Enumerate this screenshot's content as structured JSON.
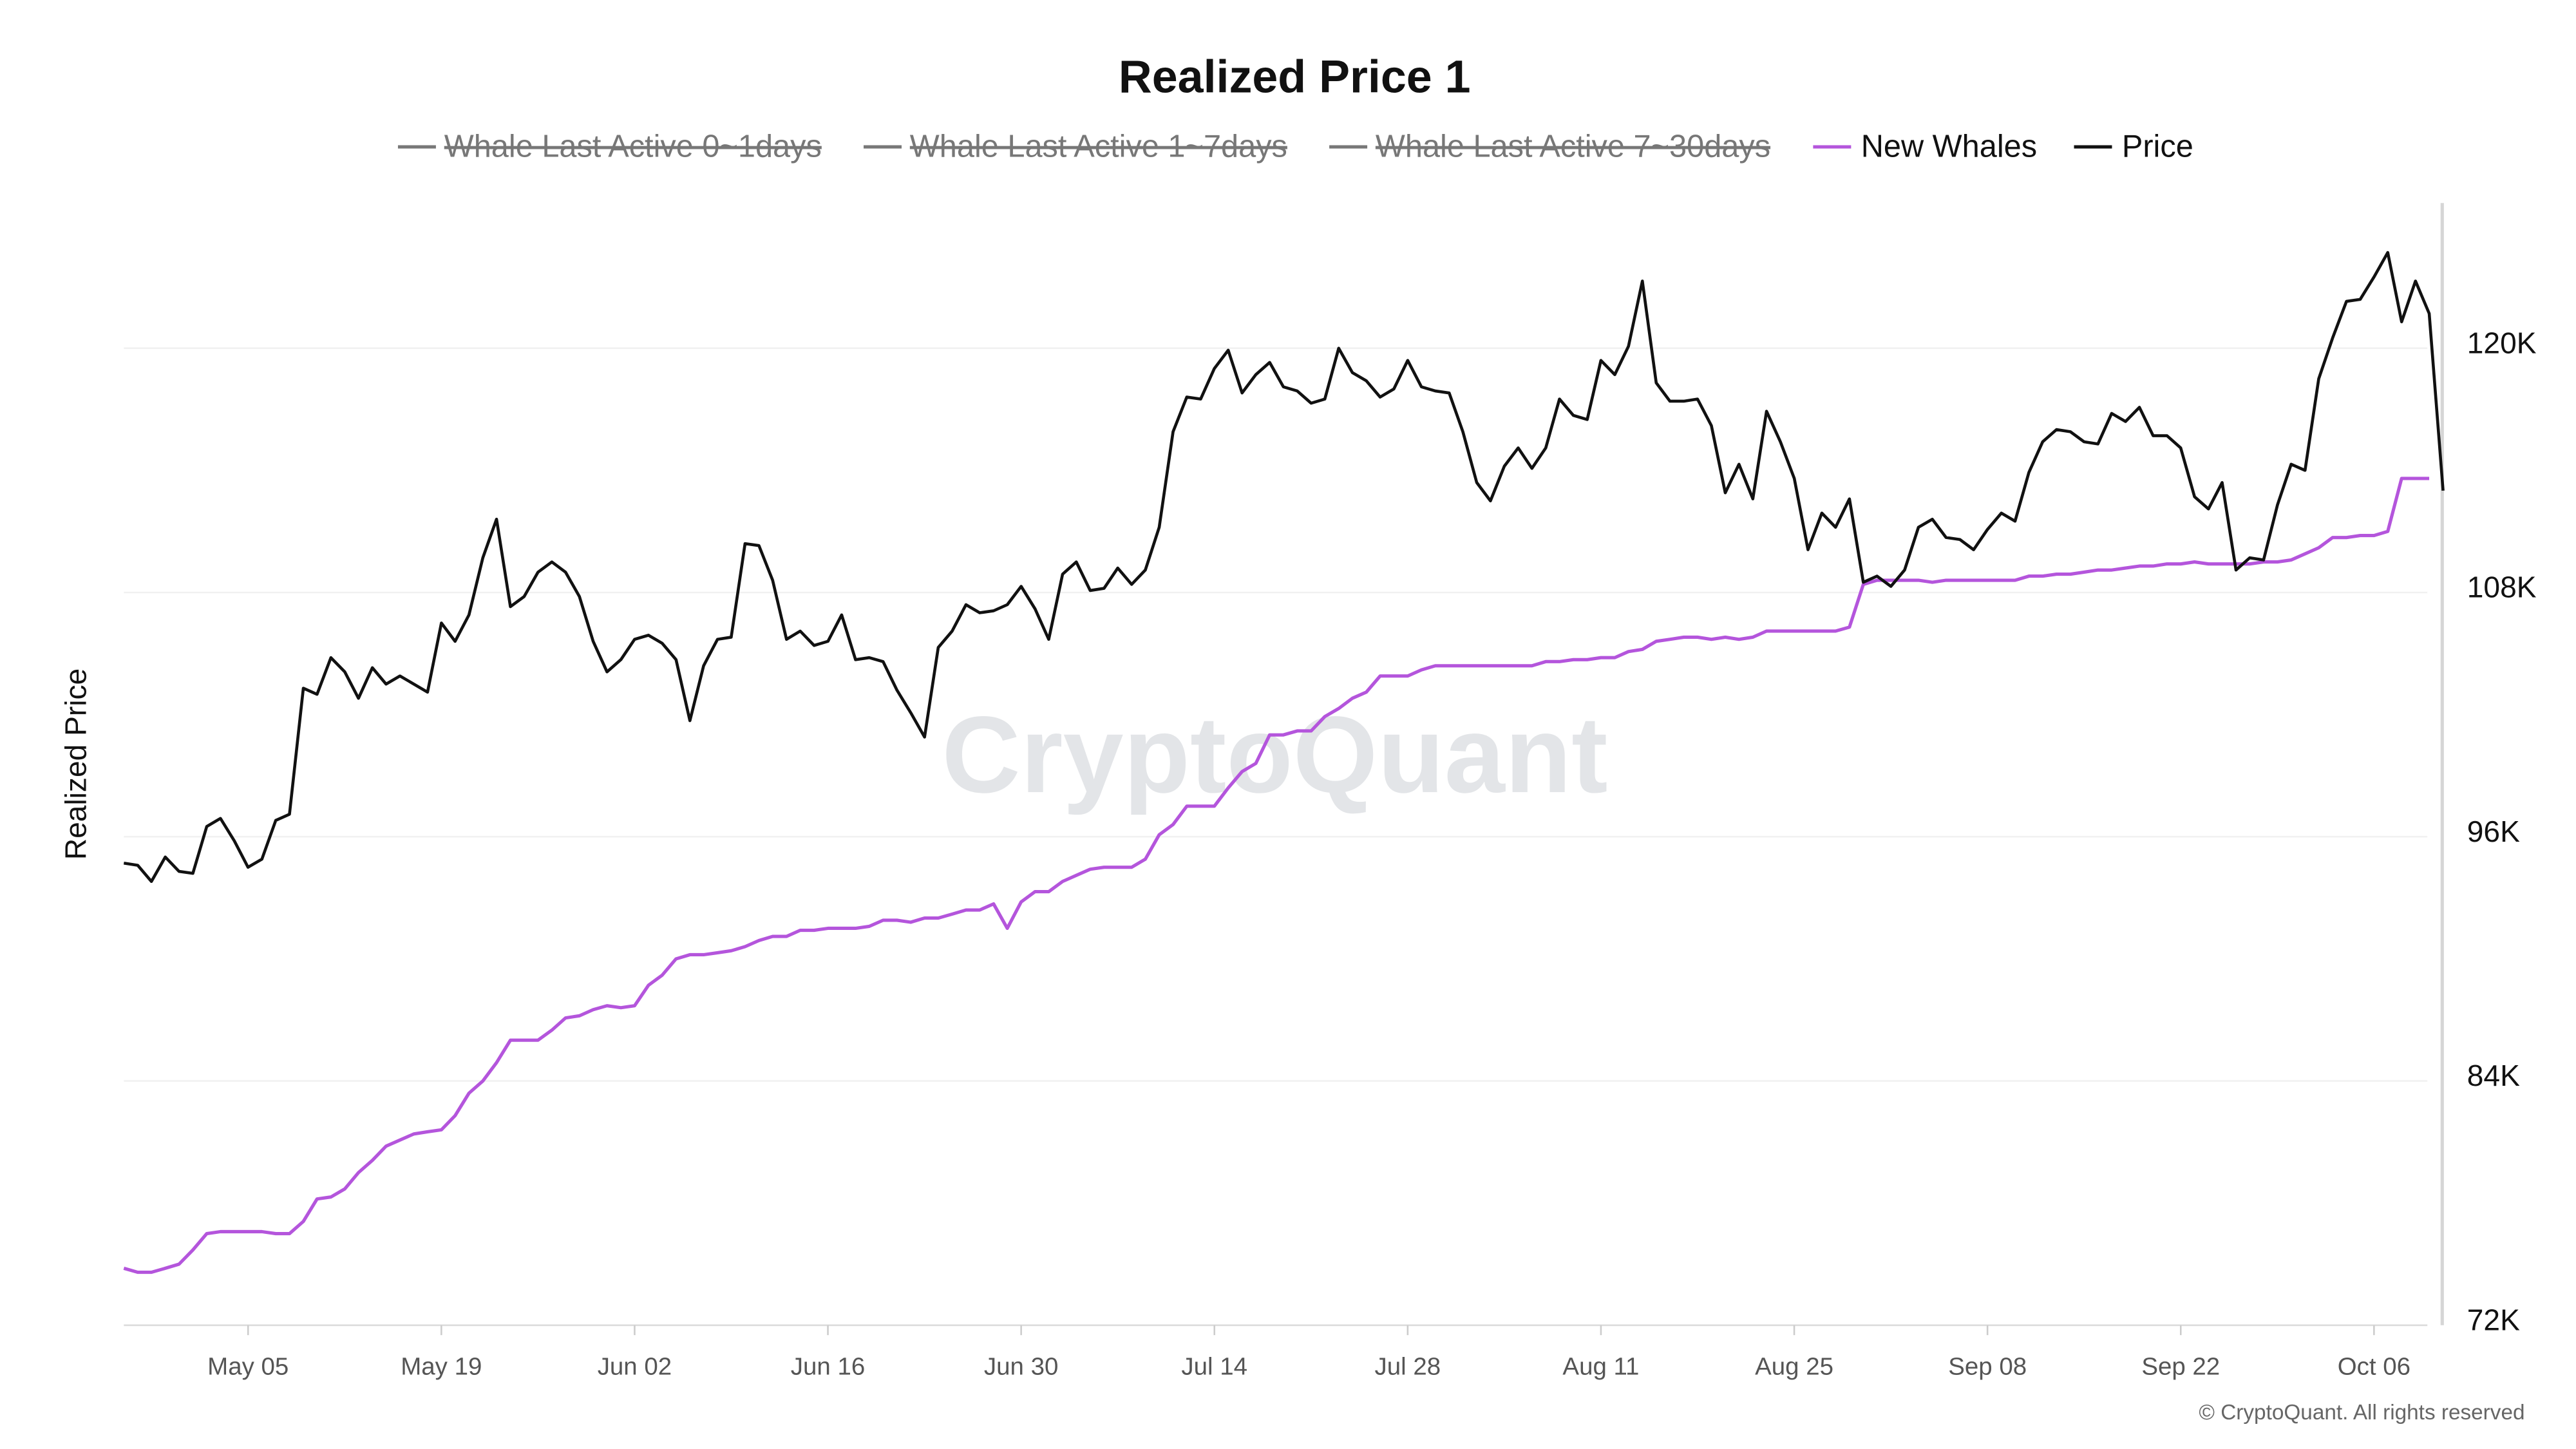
{
  "chart_data": {
    "type": "line",
    "title": "Realized Price 1",
    "ylabel": "Realized Price",
    "xlabel": "",
    "ylim": [
      72000,
      128000
    ],
    "y_ticks": [
      {
        "value": 72000,
        "label": "72K"
      },
      {
        "value": 84000,
        "label": "84K"
      },
      {
        "value": 96000,
        "label": "96K"
      },
      {
        "value": 108000,
        "label": "108K"
      },
      {
        "value": 120000,
        "label": "120K"
      }
    ],
    "x_start_date": "Apr 26",
    "x_ticks": [
      {
        "day": 9,
        "label": "May 05"
      },
      {
        "day": 23,
        "label": "May 19"
      },
      {
        "day": 37,
        "label": "Jun 02"
      },
      {
        "day": 51,
        "label": "Jun 16"
      },
      {
        "day": 65,
        "label": "Jun 30"
      },
      {
        "day": 79,
        "label": "Jul 14"
      },
      {
        "day": 93,
        "label": "Jul 28"
      },
      {
        "day": 107,
        "label": "Aug 11"
      },
      {
        "day": 121,
        "label": "Aug 25"
      },
      {
        "day": 135,
        "label": "Sep 08"
      },
      {
        "day": 149,
        "label": "Sep 22"
      },
      {
        "day": 163,
        "label": "Oct 06"
      }
    ],
    "grid": "horizontal",
    "legend_placement": "top-center",
    "legend": [
      {
        "name": "Whale Last Active 0~1days",
        "color": "#777777",
        "hidden": true
      },
      {
        "name": "Whale Last Active 1~7days",
        "color": "#777777",
        "hidden": true
      },
      {
        "name": "Whale Last Active 7~30days",
        "color": "#777777",
        "hidden": true
      },
      {
        "name": "New Whales",
        "color": "#b455dc",
        "hidden": false
      },
      {
        "name": "Price",
        "color": "#111111",
        "hidden": false
      }
    ],
    "series": [
      {
        "name": "Price",
        "color": "#111111",
        "unit": "K USD",
        "values": [
          94.7,
          94.6,
          93.8,
          95.0,
          94.3,
          94.2,
          96.5,
          96.9,
          95.8,
          94.5,
          94.9,
          96.8,
          97.1,
          103.3,
          103.0,
          104.8,
          104.1,
          102.8,
          104.3,
          103.5,
          103.9,
          103.5,
          103.1,
          106.5,
          105.6,
          106.9,
          109.7,
          111.6,
          107.3,
          107.8,
          109.0,
          109.5,
          109.0,
          107.8,
          105.6,
          104.1,
          104.7,
          105.7,
          105.9,
          105.5,
          104.7,
          101.7,
          104.4,
          105.7,
          105.8,
          110.4,
          110.3,
          108.6,
          105.7,
          106.1,
          105.4,
          105.6,
          106.9,
          104.7,
          104.8,
          104.6,
          103.2,
          102.1,
          100.9,
          105.3,
          106.1,
          107.4,
          107.0,
          107.1,
          107.4,
          108.3,
          107.2,
          105.7,
          108.9,
          109.5,
          108.1,
          108.2,
          109.2,
          108.4,
          109.1,
          111.2,
          115.9,
          117.6,
          117.5,
          119.0,
          119.9,
          117.8,
          118.7,
          119.3,
          118.1,
          117.9,
          117.3,
          117.5,
          120.0,
          118.8,
          118.4,
          117.6,
          118.0,
          119.4,
          118.1,
          117.9,
          117.8,
          115.9,
          113.4,
          112.5,
          114.2,
          115.1,
          114.1,
          115.1,
          117.5,
          116.7,
          116.5,
          119.4,
          118.7,
          120.1,
          123.3,
          118.3,
          117.4,
          117.4,
          117.5,
          116.2,
          112.9,
          114.3,
          112.6,
          116.9,
          115.4,
          113.6,
          110.1,
          111.9,
          111.2,
          112.6,
          108.5,
          108.8,
          108.3,
          109.1,
          111.2,
          111.6,
          110.7,
          110.6,
          110.1,
          111.1,
          111.9,
          111.5,
          113.9,
          115.4,
          116.0,
          115.9,
          115.4,
          115.3,
          116.8,
          116.4,
          117.1,
          115.7,
          115.7,
          115.1,
          112.7,
          112.1,
          113.4,
          109.1,
          109.7,
          109.6,
          112.3,
          114.3,
          114.0,
          118.5,
          120.5,
          122.3,
          122.4,
          123.5,
          124.7,
          121.3,
          123.3,
          121.7,
          113.0
        ]
      },
      {
        "name": "New Whales",
        "color": "#b455dc",
        "unit": "K USD",
        "values": [
          74.8,
          74.6,
          74.6,
          74.8,
          75.0,
          75.7,
          76.5,
          76.6,
          76.6,
          76.6,
          76.6,
          76.5,
          76.5,
          77.1,
          78.2,
          78.3,
          78.7,
          79.5,
          80.1,
          80.8,
          81.1,
          81.4,
          81.5,
          81.6,
          82.3,
          83.4,
          84.0,
          84.9,
          86.0,
          86.0,
          86.0,
          86.5,
          87.1,
          87.2,
          87.5,
          87.7,
          87.6,
          87.7,
          88.7,
          89.2,
          90.0,
          90.2,
          90.2,
          90.3,
          90.4,
          90.6,
          90.9,
          91.1,
          91.1,
          91.4,
          91.4,
          91.5,
          91.5,
          91.5,
          91.6,
          91.9,
          91.9,
          91.8,
          92.0,
          92.0,
          92.2,
          92.4,
          92.4,
          92.7,
          91.5,
          92.8,
          93.3,
          93.3,
          93.8,
          94.1,
          94.4,
          94.5,
          94.5,
          94.5,
          94.9,
          96.1,
          96.6,
          97.5,
          97.5,
          97.5,
          98.4,
          99.2,
          99.6,
          101.0,
          101.0,
          101.2,
          101.2,
          101.9,
          102.3,
          102.8,
          103.1,
          103.9,
          103.9,
          103.9,
          104.2,
          104.4,
          104.4,
          104.4,
          104.4,
          104.4,
          104.4,
          104.4,
          104.4,
          104.6,
          104.6,
          104.7,
          104.7,
          104.8,
          104.8,
          105.1,
          105.2,
          105.6,
          105.7,
          105.8,
          105.8,
          105.7,
          105.8,
          105.7,
          105.8,
          106.1,
          106.1,
          106.1,
          106.1,
          106.1,
          106.1,
          106.3,
          108.4,
          108.6,
          108.6,
          108.6,
          108.6,
          108.5,
          108.6,
          108.6,
          108.6,
          108.6,
          108.6,
          108.6,
          108.8,
          108.8,
          108.9,
          108.9,
          109.0,
          109.1,
          109.1,
          109.2,
          109.3,
          109.3,
          109.4,
          109.4,
          109.5,
          109.4,
          109.4,
          109.4,
          109.4,
          109.5,
          109.5,
          109.6,
          109.9,
          110.2,
          110.7,
          110.7,
          110.8,
          110.8,
          111.0,
          113.6,
          113.6,
          113.6
        ]
      }
    ]
  },
  "watermark": "CryptoQuant",
  "copyright": "© CryptoQuant. All rights reserved"
}
